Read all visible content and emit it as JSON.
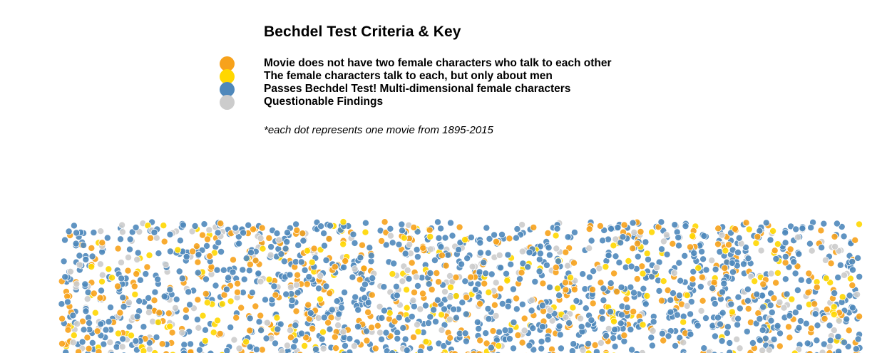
{
  "legend": {
    "title": "Bechdel Test Criteria & Key",
    "items": [
      {
        "label": "Movie does not have two female characters who talk to each other",
        "color": "#f7a21b"
      },
      {
        "label": "The female characters talk to each, but only about men",
        "color": "#ffd700"
      },
      {
        "label": "Passes Bechdel Test! Multi-dimensional female characters",
        "color": "#4f88bb"
      },
      {
        "label": "Questionable Findings",
        "color": "#cccccc"
      }
    ],
    "note": "*each dot represents one movie from 1895-2015"
  },
  "chart_data": {
    "type": "scatter",
    "title": "Bechdel Test Criteria & Key",
    "encoding": "one dot per movie, randomly scattered; color = test outcome",
    "year_range": [
      1895,
      2015
    ],
    "categories": [
      "Movie does not have two female characters who talk to each other",
      "The female characters talk to each, but only about men",
      "Passes Bechdel Test! Multi-dimensional female characters",
      "Questionable Findings"
    ],
    "colors": [
      "#f7a21b",
      "#ffd700",
      "#4f88bb",
      "#cccccc"
    ],
    "approx_share": [
      0.22,
      0.1,
      0.56,
      0.12
    ]
  }
}
